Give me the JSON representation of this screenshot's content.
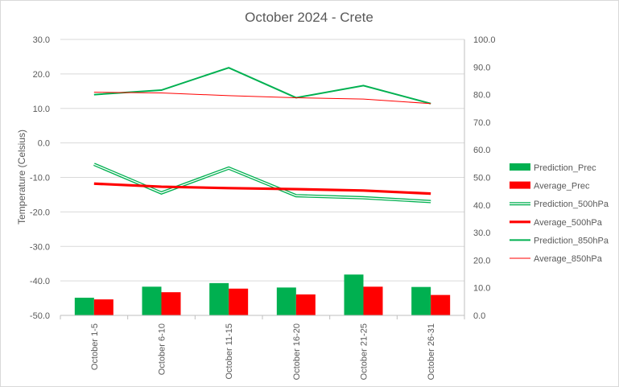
{
  "chart_data": {
    "type": "bar",
    "title": "October 2024 - Crete",
    "ylabel": "Temperature (Celsius)",
    "y2label": "",
    "categories": [
      "October 1-5",
      "October 6-10",
      "October 11-15",
      "October 16-20",
      "October 21-25",
      "October 26-31"
    ],
    "ylim": [
      -50,
      30
    ],
    "y_ticks": [
      "-50.0",
      "-40.0",
      "-30.0",
      "-20.0",
      "-10.0",
      "0.0",
      "10.0",
      "20.0",
      "30.0"
    ],
    "y2lim": [
      0,
      100
    ],
    "y2_ticks": [
      "0.0",
      "10.0",
      "20.0",
      "30.0",
      "40.0",
      "50.0",
      "60.0",
      "70.0",
      "80.0",
      "90.0",
      "100.0"
    ],
    "grid": true,
    "legend_position": "right",
    "colors": {
      "green": "#00b050",
      "red": "#ff0000"
    },
    "series": [
      {
        "name": "Prediction_Prec",
        "kind": "bar",
        "axis": "right",
        "color": "#00b050",
        "values": [
          6.4,
          10.4,
          11.7,
          10.1,
          14.8,
          10.3
        ]
      },
      {
        "name": "Average_Prec",
        "kind": "bar",
        "axis": "right",
        "color": "#ff0000",
        "values": [
          5.8,
          8.4,
          9.7,
          7.6,
          10.4,
          7.4
        ]
      },
      {
        "name": "Prediction_500hPa",
        "kind": "line-double",
        "axis": "left",
        "color": "#00b050",
        "values": [
          -6.2,
          -14.5,
          -7.3,
          -15.3,
          -15.9,
          -17.0
        ]
      },
      {
        "name": "Average_500hPa",
        "kind": "line-thick",
        "axis": "left",
        "color": "#ff0000",
        "values": [
          -11.8,
          -12.7,
          -13.1,
          -13.4,
          -13.8,
          -14.7
        ]
      },
      {
        "name": "Prediction_850hPa",
        "kind": "line",
        "axis": "left",
        "color": "#00b050",
        "values": [
          14.0,
          15.3,
          21.8,
          13.1,
          16.6,
          11.4
        ]
      },
      {
        "name": "Average_850hPa",
        "kind": "line-thin",
        "axis": "left",
        "color": "#ff0000",
        "values": [
          14.7,
          14.5,
          13.7,
          13.1,
          12.7,
          11.4
        ]
      }
    ]
  }
}
